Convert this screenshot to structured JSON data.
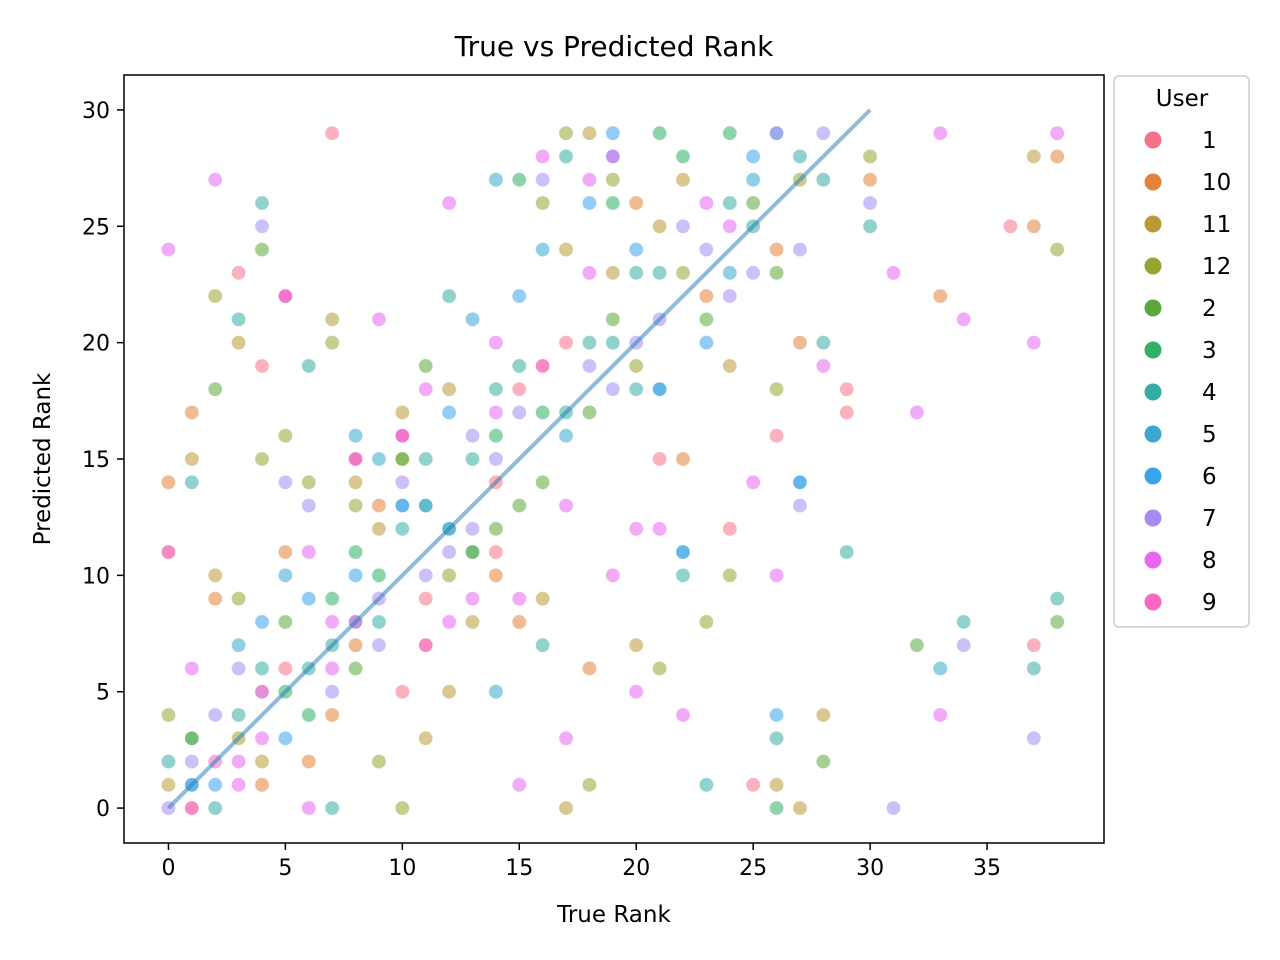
{
  "chart_data": {
    "type": "scatter",
    "title": "True vs Predicted Rank",
    "xlabel": "True Rank",
    "ylabel": "Predicted Rank",
    "xlim": [
      -1.9,
      40
    ],
    "ylim": [
      -1.5,
      31.5
    ],
    "xticks": [
      0,
      5,
      10,
      15,
      20,
      25,
      30,
      35
    ],
    "yticks": [
      0,
      5,
      10,
      15,
      20,
      25,
      30
    ],
    "grid": false,
    "legend": {
      "title": "User",
      "placement": "outside right, top"
    },
    "diagonal": {
      "from": [
        0,
        0
      ],
      "to": [
        30,
        30
      ],
      "color": "#1f77b4"
    },
    "series": [
      {
        "name": "1",
        "color": "#f77189",
        "points": [
          [
            0,
            11
          ],
          [
            1,
            0
          ],
          [
            3,
            23
          ],
          [
            4,
            19
          ],
          [
            5,
            22
          ],
          [
            5,
            6
          ],
          [
            7,
            29
          ],
          [
            10,
            5
          ],
          [
            10,
            16
          ],
          [
            11,
            7
          ],
          [
            11,
            9
          ],
          [
            14,
            14
          ],
          [
            14,
            11
          ],
          [
            15,
            18
          ],
          [
            16,
            19
          ],
          [
            17,
            20
          ],
          [
            21,
            15
          ],
          [
            24,
            12
          ],
          [
            25,
            1
          ],
          [
            26,
            16
          ],
          [
            29,
            18
          ],
          [
            29,
            17
          ],
          [
            36,
            25
          ],
          [
            37,
            7
          ]
        ]
      },
      {
        "name": "10",
        "color": "#e4813b",
        "points": [
          [
            0,
            14
          ],
          [
            1,
            17
          ],
          [
            2,
            9
          ],
          [
            4,
            1
          ],
          [
            5,
            11
          ],
          [
            6,
            2
          ],
          [
            7,
            4
          ],
          [
            8,
            15
          ],
          [
            8,
            7
          ],
          [
            9,
            13
          ],
          [
            14,
            10
          ],
          [
            15,
            8
          ],
          [
            18,
            6
          ],
          [
            20,
            26
          ],
          [
            22,
            15
          ],
          [
            23,
            22
          ],
          [
            26,
            24
          ],
          [
            27,
            20
          ],
          [
            30,
            27
          ],
          [
            33,
            22
          ],
          [
            37,
            25
          ],
          [
            38,
            28
          ]
        ]
      },
      {
        "name": "11",
        "color": "#b99b36",
        "points": [
          [
            0,
            1
          ],
          [
            1,
            15
          ],
          [
            2,
            10
          ],
          [
            3,
            20
          ],
          [
            4,
            2
          ],
          [
            7,
            21
          ],
          [
            8,
            14
          ],
          [
            9,
            12
          ],
          [
            10,
            17
          ],
          [
            11,
            3
          ],
          [
            12,
            18
          ],
          [
            12,
            5
          ],
          [
            13,
            8
          ],
          [
            16,
            9
          ],
          [
            17,
            24
          ],
          [
            17,
            0
          ],
          [
            18,
            29
          ],
          [
            19,
            23
          ],
          [
            20,
            7
          ],
          [
            21,
            25
          ],
          [
            22,
            27
          ],
          [
            24,
            19
          ],
          [
            26,
            1
          ],
          [
            27,
            0
          ],
          [
            28,
            4
          ],
          [
            37,
            28
          ]
        ]
      },
      {
        "name": "12",
        "color": "#97a431",
        "points": [
          [
            0,
            4
          ],
          [
            1,
            3
          ],
          [
            2,
            22
          ],
          [
            3,
            9
          ],
          [
            3,
            3
          ],
          [
            4,
            15
          ],
          [
            5,
            16
          ],
          [
            6,
            14
          ],
          [
            7,
            20
          ],
          [
            8,
            13
          ],
          [
            9,
            2
          ],
          [
            10,
            15
          ],
          [
            10,
            0
          ],
          [
            12,
            10
          ],
          [
            13,
            11
          ],
          [
            16,
            26
          ],
          [
            17,
            29
          ],
          [
            18,
            1
          ],
          [
            19,
            27
          ],
          [
            20,
            19
          ],
          [
            21,
            6
          ],
          [
            22,
            23
          ],
          [
            23,
            8
          ],
          [
            24,
            10
          ],
          [
            26,
            18
          ],
          [
            27,
            27
          ],
          [
            30,
            28
          ],
          [
            38,
            24
          ]
        ]
      },
      {
        "name": "2",
        "color": "#5ca83a",
        "points": [
          [
            2,
            18
          ],
          [
            4,
            24
          ],
          [
            5,
            8
          ],
          [
            8,
            6
          ],
          [
            10,
            15
          ],
          [
            11,
            19
          ],
          [
            14,
            12
          ],
          [
            15,
            13
          ],
          [
            16,
            14
          ],
          [
            18,
            17
          ],
          [
            19,
            21
          ],
          [
            23,
            21
          ],
          [
            25,
            26
          ],
          [
            26,
            23
          ],
          [
            28,
            2
          ],
          [
            32,
            7
          ],
          [
            38,
            8
          ]
        ]
      },
      {
        "name": "3",
        "color": "#32b166",
        "points": [
          [
            1,
            3
          ],
          [
            5,
            5
          ],
          [
            6,
            4
          ],
          [
            7,
            9
          ],
          [
            8,
            11
          ],
          [
            9,
            10
          ],
          [
            13,
            11
          ],
          [
            14,
            16
          ],
          [
            15,
            27
          ],
          [
            16,
            17
          ],
          [
            19,
            26
          ],
          [
            21,
            29
          ],
          [
            22,
            28
          ],
          [
            24,
            29
          ],
          [
            26,
            0
          ]
        ]
      },
      {
        "name": "4",
        "color": "#36ada4",
        "points": [
          [
            0,
            2
          ],
          [
            1,
            14
          ],
          [
            2,
            0
          ],
          [
            3,
            21
          ],
          [
            3,
            4
          ],
          [
            4,
            26
          ],
          [
            4,
            6
          ],
          [
            6,
            19
          ],
          [
            6,
            6
          ],
          [
            7,
            7
          ],
          [
            7,
            0
          ],
          [
            8,
            8
          ],
          [
            9,
            8
          ],
          [
            10,
            12
          ],
          [
            11,
            15
          ],
          [
            11,
            13
          ],
          [
            12,
            22
          ],
          [
            12,
            12
          ],
          [
            13,
            15
          ],
          [
            14,
            18
          ],
          [
            15,
            19
          ],
          [
            16,
            7
          ],
          [
            17,
            28
          ],
          [
            17,
            17
          ],
          [
            18,
            20
          ],
          [
            19,
            20
          ],
          [
            20,
            23
          ],
          [
            20,
            18
          ],
          [
            21,
            23
          ],
          [
            22,
            10
          ],
          [
            23,
            1
          ],
          [
            24,
            26
          ],
          [
            25,
            25
          ],
          [
            26,
            3
          ],
          [
            27,
            28
          ],
          [
            28,
            27
          ],
          [
            28,
            20
          ],
          [
            29,
            11
          ],
          [
            30,
            25
          ],
          [
            34,
            8
          ],
          [
            37,
            6
          ],
          [
            38,
            9
          ]
        ]
      },
      {
        "name": "5",
        "color": "#39a7d0",
        "points": [
          [
            1,
            1
          ],
          [
            3,
            7
          ],
          [
            5,
            10
          ],
          [
            8,
            16
          ],
          [
            9,
            15
          ],
          [
            10,
            13
          ],
          [
            11,
            13
          ],
          [
            12,
            12
          ],
          [
            13,
            21
          ],
          [
            14,
            27
          ],
          [
            14,
            5
          ],
          [
            16,
            24
          ],
          [
            17,
            16
          ],
          [
            19,
            28
          ],
          [
            21,
            18
          ],
          [
            22,
            11
          ],
          [
            24,
            23
          ],
          [
            25,
            27
          ],
          [
            26,
            29
          ],
          [
            27,
            14
          ],
          [
            33,
            6
          ]
        ]
      },
      {
        "name": "6",
        "color": "#3ba3ec",
        "points": [
          [
            1,
            1
          ],
          [
            2,
            1
          ],
          [
            4,
            8
          ],
          [
            5,
            3
          ],
          [
            6,
            9
          ],
          [
            8,
            10
          ],
          [
            10,
            13
          ],
          [
            12,
            17
          ],
          [
            15,
            22
          ],
          [
            18,
            26
          ],
          [
            19,
            29
          ],
          [
            20,
            24
          ],
          [
            21,
            18
          ],
          [
            22,
            11
          ],
          [
            23,
            20
          ],
          [
            25,
            28
          ],
          [
            26,
            4
          ],
          [
            27,
            14
          ]
        ]
      },
      {
        "name": "7",
        "color": "#a48cf4",
        "points": [
          [
            0,
            0
          ],
          [
            1,
            2
          ],
          [
            2,
            4
          ],
          [
            3,
            6
          ],
          [
            4,
            25
          ],
          [
            4,
            5
          ],
          [
            5,
            14
          ],
          [
            6,
            13
          ],
          [
            7,
            5
          ],
          [
            9,
            9
          ],
          [
            9,
            7
          ],
          [
            10,
            14
          ],
          [
            11,
            10
          ],
          [
            12,
            11
          ],
          [
            13,
            16
          ],
          [
            13,
            12
          ],
          [
            14,
            15
          ],
          [
            15,
            17
          ],
          [
            16,
            27
          ],
          [
            18,
            19
          ],
          [
            19,
            18
          ],
          [
            20,
            20
          ],
          [
            21,
            21
          ],
          [
            22,
            25
          ],
          [
            23,
            24
          ],
          [
            24,
            22
          ],
          [
            25,
            23
          ],
          [
            26,
            29
          ],
          [
            27,
            13
          ],
          [
            27,
            24
          ],
          [
            28,
            29
          ],
          [
            30,
            26
          ],
          [
            31,
            0
          ],
          [
            34,
            7
          ],
          [
            37,
            3
          ]
        ]
      },
      {
        "name": "8",
        "color": "#e866f4",
        "points": [
          [
            0,
            24
          ],
          [
            1,
            6
          ],
          [
            2,
            27
          ],
          [
            3,
            2
          ],
          [
            3,
            1
          ],
          [
            4,
            3
          ],
          [
            5,
            22
          ],
          [
            6,
            11
          ],
          [
            6,
            0
          ],
          [
            7,
            8
          ],
          [
            7,
            6
          ],
          [
            8,
            15
          ],
          [
            8,
            8
          ],
          [
            9,
            21
          ],
          [
            10,
            16
          ],
          [
            11,
            18
          ],
          [
            12,
            26
          ],
          [
            12,
            8
          ],
          [
            13,
            9
          ],
          [
            14,
            20
          ],
          [
            14,
            17
          ],
          [
            15,
            9
          ],
          [
            15,
            1
          ],
          [
            16,
            28
          ],
          [
            17,
            13
          ],
          [
            17,
            3
          ],
          [
            18,
            27
          ],
          [
            18,
            23
          ],
          [
            19,
            28
          ],
          [
            19,
            10
          ],
          [
            20,
            12
          ],
          [
            20,
            5
          ],
          [
            21,
            12
          ],
          [
            22,
            4
          ],
          [
            23,
            26
          ],
          [
            24,
            25
          ],
          [
            25,
            14
          ],
          [
            26,
            10
          ],
          [
            28,
            19
          ],
          [
            31,
            23
          ],
          [
            32,
            17
          ],
          [
            33,
            29
          ],
          [
            33,
            4
          ],
          [
            34,
            21
          ],
          [
            37,
            20
          ],
          [
            38,
            29
          ]
        ]
      },
      {
        "name": "9",
        "color": "#f668c2",
        "points": [
          [
            0,
            11
          ],
          [
            1,
            0
          ],
          [
            2,
            2
          ],
          [
            4,
            5
          ],
          [
            5,
            22
          ],
          [
            8,
            15
          ],
          [
            10,
            16
          ],
          [
            11,
            7
          ],
          [
            16,
            19
          ]
        ]
      }
    ]
  }
}
